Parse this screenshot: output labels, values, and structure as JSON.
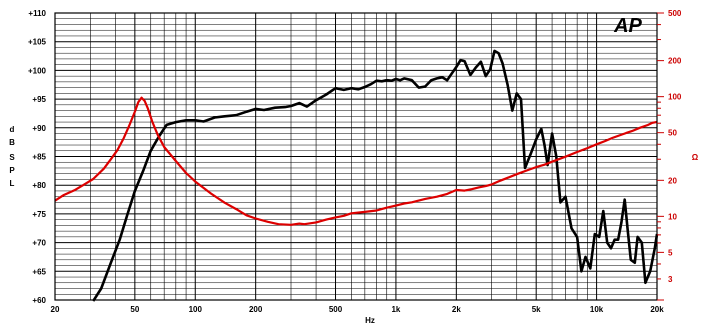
{
  "chart_data": {
    "type": "line",
    "logo": "AP",
    "xlabel": "Hz",
    "xscale": "log",
    "xlim": [
      20,
      20000
    ],
    "xticks": [
      {
        "value": 20,
        "label": "20"
      },
      {
        "value": 50,
        "label": "50"
      },
      {
        "value": 100,
        "label": "100"
      },
      {
        "value": 200,
        "label": "200"
      },
      {
        "value": 500,
        "label": "500"
      },
      {
        "value": 1000,
        "label": "1k"
      },
      {
        "value": 2000,
        "label": "2k"
      },
      {
        "value": 5000,
        "label": "5k"
      },
      {
        "value": 10000,
        "label": "10k"
      },
      {
        "value": 20000,
        "label": "20k"
      }
    ],
    "ylabel_left": [
      "d",
      "B",
      "S",
      "P",
      "L"
    ],
    "ylim_left": [
      60,
      110
    ],
    "yticks_left": [
      "+60",
      "+65",
      "+70",
      "+75",
      "+80",
      "+85",
      "+90",
      "+95",
      "+100",
      "+105",
      "+110"
    ],
    "ylabel_right": "Ω",
    "yscale_right": "log",
    "ylim_right": [
      2,
      500
    ],
    "yticks_right": [
      {
        "value": 3,
        "label": "3"
      },
      {
        "value": 5,
        "label": "5"
      },
      {
        "value": 10,
        "label": "10"
      },
      {
        "value": 20,
        "label": "20"
      },
      {
        "value": 50,
        "label": "50"
      },
      {
        "value": 100,
        "label": "100"
      },
      {
        "value": 200,
        "label": "200"
      },
      {
        "value": 500,
        "label": "500"
      }
    ],
    "grid": true,
    "colors": {
      "spl": "#000000",
      "impedance": "#dd0000",
      "grid": "#000000",
      "right_axis": "#cc0000"
    },
    "series": [
      {
        "id": "spl",
        "axis": "left",
        "points": [
          [
            31,
            59.8
          ],
          [
            34,
            62
          ],
          [
            38,
            66.5
          ],
          [
            42,
            70.5
          ],
          [
            46,
            75
          ],
          [
            50,
            79
          ],
          [
            55,
            82.5
          ],
          [
            60,
            86
          ],
          [
            66,
            88.5
          ],
          [
            72,
            90.5
          ],
          [
            80,
            91
          ],
          [
            90,
            91.3
          ],
          [
            100,
            91.3
          ],
          [
            110,
            91.1
          ],
          [
            125,
            91.8
          ],
          [
            140,
            92
          ],
          [
            160,
            92.2
          ],
          [
            180,
            92.8
          ],
          [
            200,
            93.3
          ],
          [
            220,
            93.1
          ],
          [
            250,
            93.5
          ],
          [
            280,
            93.6
          ],
          [
            300,
            93.8
          ],
          [
            330,
            94.3
          ],
          [
            360,
            93.7
          ],
          [
            400,
            94.8
          ],
          [
            450,
            95.8
          ],
          [
            500,
            96.9
          ],
          [
            550,
            96.6
          ],
          [
            600,
            96.9
          ],
          [
            650,
            96.7
          ],
          [
            700,
            97.1
          ],
          [
            750,
            97.6
          ],
          [
            800,
            98.2
          ],
          [
            850,
            98.1
          ],
          [
            900,
            98.3
          ],
          [
            950,
            98.2
          ],
          [
            1000,
            98.5
          ],
          [
            1050,
            98.3
          ],
          [
            1100,
            98.6
          ],
          [
            1200,
            98.3
          ],
          [
            1300,
            97
          ],
          [
            1400,
            97.2
          ],
          [
            1500,
            98.3
          ],
          [
            1600,
            98.6
          ],
          [
            1700,
            98.8
          ],
          [
            1800,
            98.3
          ],
          [
            1900,
            99.5
          ],
          [
            2000,
            100.6
          ],
          [
            2100,
            101.8
          ],
          [
            2200,
            101.6
          ],
          [
            2350,
            99.2
          ],
          [
            2500,
            100.5
          ],
          [
            2650,
            101.5
          ],
          [
            2800,
            99
          ],
          [
            2950,
            100.2
          ],
          [
            3100,
            103.4
          ],
          [
            3250,
            103
          ],
          [
            3400,
            101.2
          ],
          [
            3600,
            97.5
          ],
          [
            3800,
            93
          ],
          [
            4000,
            96
          ],
          [
            4200,
            95
          ],
          [
            4400,
            83
          ],
          [
            4700,
            85.5
          ],
          [
            5000,
            88
          ],
          [
            5300,
            89.8
          ],
          [
            5500,
            87
          ],
          [
            5700,
            83.5
          ],
          [
            6000,
            89
          ],
          [
            6300,
            85
          ],
          [
            6600,
            77
          ],
          [
            7000,
            78
          ],
          [
            7500,
            72.5
          ],
          [
            8000,
            71
          ],
          [
            8400,
            65
          ],
          [
            8800,
            67.5
          ],
          [
            9300,
            65.5
          ],
          [
            9800,
            71.5
          ],
          [
            10300,
            71
          ],
          [
            10800,
            75.5
          ],
          [
            11300,
            70
          ],
          [
            11800,
            69
          ],
          [
            12300,
            70.5
          ],
          [
            12800,
            70.5
          ],
          [
            13300,
            73.5
          ],
          [
            13800,
            77.5
          ],
          [
            14300,
            72
          ],
          [
            14800,
            67
          ],
          [
            15500,
            66.5
          ],
          [
            16000,
            71
          ],
          [
            16800,
            70
          ],
          [
            17500,
            63
          ],
          [
            18500,
            65
          ],
          [
            19500,
            69
          ],
          [
            20000,
            71.5
          ]
        ]
      },
      {
        "id": "impedance",
        "axis": "right",
        "points": [
          [
            20,
            13.5
          ],
          [
            22,
            15
          ],
          [
            25,
            16.5
          ],
          [
            28,
            18.5
          ],
          [
            31,
            20.5
          ],
          [
            35,
            25
          ],
          [
            38,
            30
          ],
          [
            41,
            36
          ],
          [
            44,
            45
          ],
          [
            47,
            58
          ],
          [
            50,
            75
          ],
          [
            52,
            90
          ],
          [
            54,
            98
          ],
          [
            56,
            92
          ],
          [
            58,
            80
          ],
          [
            61,
            62
          ],
          [
            65,
            48
          ],
          [
            70,
            38
          ],
          [
            80,
            29
          ],
          [
            90,
            23
          ],
          [
            100,
            19.5
          ],
          [
            120,
            15.5
          ],
          [
            140,
            13
          ],
          [
            160,
            11.5
          ],
          [
            180,
            10.2
          ],
          [
            200,
            9.6
          ],
          [
            230,
            9
          ],
          [
            260,
            8.6
          ],
          [
            300,
            8.5
          ],
          [
            330,
            8.7
          ],
          [
            350,
            8.6
          ],
          [
            400,
            8.9
          ],
          [
            450,
            9.4
          ],
          [
            500,
            9.8
          ],
          [
            550,
            10.1
          ],
          [
            600,
            10.6
          ],
          [
            700,
            10.9
          ],
          [
            800,
            11.2
          ],
          [
            900,
            11.8
          ],
          [
            1000,
            12.3
          ],
          [
            1100,
            12.8
          ],
          [
            1200,
            13.1
          ],
          [
            1400,
            14
          ],
          [
            1600,
            14.6
          ],
          [
            1800,
            15.4
          ],
          [
            2000,
            16.6
          ],
          [
            2200,
            16.4
          ],
          [
            2400,
            16.9
          ],
          [
            2600,
            17.5
          ],
          [
            2800,
            17.9
          ],
          [
            3000,
            18.5
          ],
          [
            3300,
            19.8
          ],
          [
            3600,
            21
          ],
          [
            4000,
            22.5
          ],
          [
            4500,
            24.2
          ],
          [
            5000,
            25.8
          ],
          [
            5500,
            27
          ],
          [
            6000,
            28.6
          ],
          [
            7000,
            31.5
          ],
          [
            8000,
            34.5
          ],
          [
            9000,
            37.2
          ],
          [
            10000,
            40
          ],
          [
            11000,
            42.5
          ],
          [
            12000,
            45.2
          ],
          [
            13000,
            47.5
          ],
          [
            14000,
            49.6
          ],
          [
            15000,
            51.5
          ],
          [
            16500,
            55
          ],
          [
            18000,
            58
          ],
          [
            19000,
            60.5
          ],
          [
            20000,
            61.5
          ]
        ]
      }
    ]
  }
}
